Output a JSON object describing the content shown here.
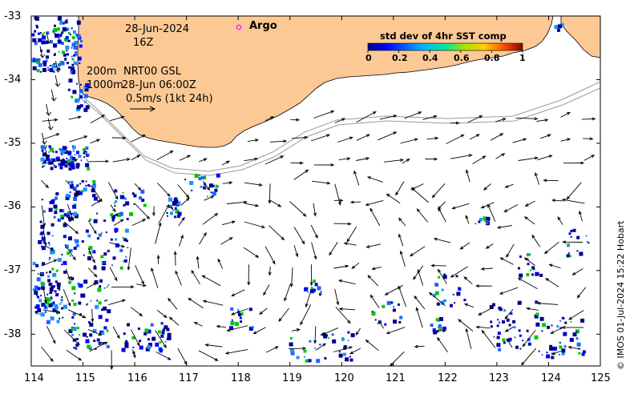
{
  "map": {
    "date_label": "28-Jun-2024",
    "time_label": "16Z",
    "argo_label": "Argo",
    "isobath_200": "200m",
    "isobath_1000": "1000m",
    "altimetry_label": "NRT00 GSL",
    "altimetry_time": "28-Jun 06:00Z",
    "velocity_scale_label": "0.5m/s (1kt 24h)",
    "x_ticks": [
      "114",
      "115",
      "116",
      "117",
      "118",
      "119",
      "120",
      "121",
      "122",
      "123",
      "124",
      "125"
    ],
    "y_ticks": [
      "-33",
      "-34",
      "-35",
      "-36",
      "-37",
      "-38"
    ],
    "lon_range": [
      114,
      125
    ],
    "lat_range": [
      -38.5,
      -33
    ],
    "colorbar": {
      "title": "std dev of 4hr SST comp",
      "ticks": [
        "0",
        "0.2",
        "0.4",
        "0.6",
        "0.8",
        "1"
      ],
      "range": [
        0,
        1
      ]
    },
    "credit": "© IMOS 01-Jul-2024 15:22 Hobart",
    "colors": {
      "land": "#fcc995",
      "ocean": "#ffffff",
      "argo_marker": "#ff00ff",
      "sst_low": "#00008c",
      "sst_mid": "#1e90ff",
      "sst_high": "#00c800"
    }
  }
}
